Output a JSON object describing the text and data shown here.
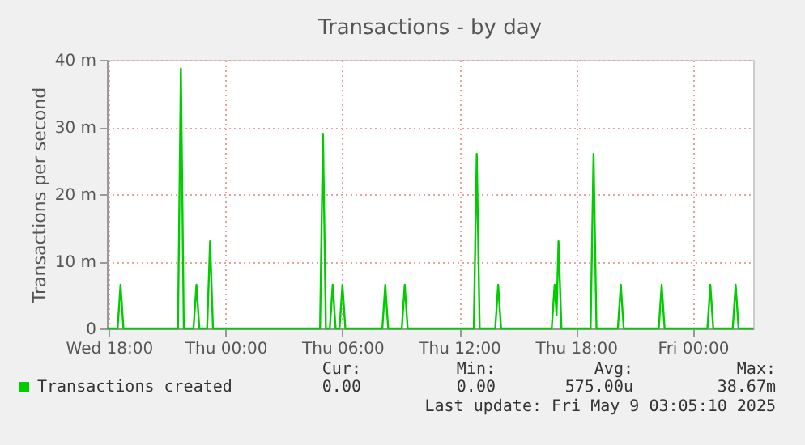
{
  "chart_data": {
    "type": "line",
    "title": "Transactions - by day",
    "ylabel": "Transactions per second",
    "x": [
      "2025-05-07T17:54",
      "2025-05-07T18:27",
      "2025-05-07T18:36",
      "2025-05-07T18:45",
      "2025-05-07T21:33",
      "2025-05-07T21:42",
      "2025-05-07T21:51",
      "2025-05-07T22:21",
      "2025-05-07T22:30",
      "2025-05-07T22:39",
      "2025-05-07T23:03",
      "2025-05-07T23:12",
      "2025-05-07T23:21",
      "2025-05-08T04:51",
      "2025-05-08T05:00",
      "2025-05-08T05:09",
      "2025-05-08T05:21",
      "2025-05-08T05:30",
      "2025-05-08T05:39",
      "2025-05-08T05:51",
      "2025-05-08T06:00",
      "2025-05-08T06:09",
      "2025-05-08T08:03",
      "2025-05-08T08:12",
      "2025-05-08T08:21",
      "2025-05-08T09:03",
      "2025-05-08T09:12",
      "2025-05-08T09:21",
      "2025-05-08T12:45",
      "2025-05-08T12:54",
      "2025-05-08T13:03",
      "2025-05-08T13:51",
      "2025-05-08T14:00",
      "2025-05-08T14:09",
      "2025-05-08T16:45",
      "2025-05-08T16:54",
      "2025-05-08T17:00",
      "2025-05-08T17:06",
      "2025-05-08T17:15",
      "2025-05-08T18:45",
      "2025-05-08T18:54",
      "2025-05-08T19:03",
      "2025-05-08T20:09",
      "2025-05-08T20:18",
      "2025-05-08T20:27",
      "2025-05-08T22:15",
      "2025-05-08T22:24",
      "2025-05-08T22:33",
      "2025-05-09T00:45",
      "2025-05-09T00:54",
      "2025-05-09T01:03",
      "2025-05-09T02:03",
      "2025-05-09T02:12",
      "2025-05-09T02:21",
      "2025-05-09T03:06"
    ],
    "series": [
      {
        "name": "Transactions created",
        "color": "#00cc00",
        "values": [
          0,
          0,
          6.5,
          0,
          0,
          38.7,
          0,
          0,
          6.5,
          0,
          0,
          13,
          0,
          0,
          29,
          0,
          0,
          6.5,
          0,
          0,
          6.5,
          0,
          0,
          6.5,
          0,
          0,
          6.5,
          0,
          0,
          26,
          0,
          0,
          6.5,
          0,
          0,
          6.5,
          2,
          13,
          0,
          0,
          26,
          0,
          0,
          6.5,
          0,
          0,
          6.5,
          0,
          0,
          6.5,
          0,
          0,
          6.5,
          0,
          0
        ]
      }
    ],
    "xlim": [
      "2025-05-07T17:54",
      "2025-05-09T03:06"
    ],
    "xticks": [
      {
        "value": "2025-05-07T18:00",
        "label": "Wed 18:00"
      },
      {
        "value": "2025-05-08T00:00",
        "label": "Thu 00:00"
      },
      {
        "value": "2025-05-08T06:00",
        "label": "Thu 06:00"
      },
      {
        "value": "2025-05-08T12:00",
        "label": "Thu 12:00"
      },
      {
        "value": "2025-05-08T18:00",
        "label": "Thu 18:00"
      },
      {
        "value": "2025-05-09T00:00",
        "label": "Fri 00:00"
      }
    ],
    "ylim": [
      0,
      40
    ],
    "yticks": [
      0,
      {
        "value": 10,
        "label": "10 m"
      },
      {
        "value": 20,
        "label": "20 m"
      },
      {
        "value": 30,
        "label": "30 m"
      },
      {
        "value": 40,
        "label": "40 m"
      }
    ],
    "grid": true,
    "legend": "bottom left",
    "marker": "none",
    "line_style": "solid",
    "annotations": [
      "Cur:",
      "Min:",
      "Avg:",
      "Max:",
      "0.00",
      "0.00",
      "575.00u",
      "38.67m",
      "Last update: Fri May  9 03:05:10 2025"
    ]
  }
}
